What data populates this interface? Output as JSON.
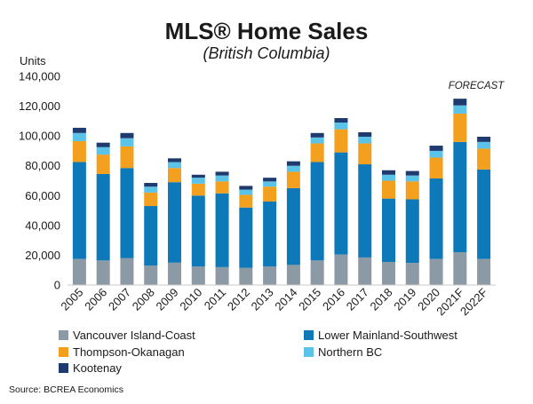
{
  "chart_data": {
    "type": "bar",
    "stacked": true,
    "title": "MLS® Home Sales",
    "subtitle": "(British Columbia)",
    "ylabel": "Units",
    "ylim": [
      0,
      140000
    ],
    "yticks": [
      0,
      20000,
      40000,
      60000,
      80000,
      100000,
      120000,
      140000
    ],
    "ytick_labels": [
      "0",
      "20,000",
      "40,000",
      "60,000",
      "80,000",
      "100,000",
      "120,000",
      "140,000"
    ],
    "grid": false,
    "legend_position": "bottom",
    "annotation": "FORECAST",
    "categories": [
      "2005",
      "2006",
      "2007",
      "2008",
      "2009",
      "2010",
      "2011",
      "2012",
      "2013",
      "2014",
      "2015",
      "2016",
      "2017",
      "2018",
      "2019",
      "2020",
      "2021F",
      "2022F"
    ],
    "series": [
      {
        "name": "Vancouver Island-Coast",
        "color": "#8c9aa6",
        "values": [
          17500,
          16500,
          18000,
          13000,
          15000,
          12500,
          12000,
          11500,
          12500,
          13500,
          16500,
          20500,
          18500,
          15500,
          14800,
          17500,
          22000,
          17500
        ]
      },
      {
        "name": "Lower Mainland-Southwest",
        "color": "#0d79b8",
        "values": [
          65000,
          58000,
          60500,
          40000,
          54000,
          47500,
          49500,
          40500,
          43500,
          51500,
          66000,
          68500,
          62500,
          42500,
          42700,
          54000,
          74000,
          60000
        ]
      },
      {
        "name": "Thompson-Okanagan",
        "color": "#f2a01e",
        "values": [
          14000,
          13000,
          14500,
          9000,
          9500,
          8000,
          8000,
          8500,
          10000,
          11000,
          12500,
          15500,
          14000,
          12000,
          12000,
          14000,
          19000,
          14000
        ]
      },
      {
        "name": "Northern BC",
        "color": "#5cc3e8",
        "values": [
          5500,
          5000,
          5500,
          4000,
          4000,
          4000,
          4000,
          3500,
          3500,
          4000,
          4000,
          4500,
          4500,
          4000,
          4000,
          4500,
          5500,
          4500
        ]
      },
      {
        "name": "Kootenay",
        "color": "#1e3a6e",
        "values": [
          3500,
          3000,
          3500,
          2500,
          2500,
          2000,
          2500,
          2500,
          2500,
          3000,
          3000,
          3000,
          3000,
          3000,
          3000,
          3500,
          4500,
          3500
        ]
      }
    ],
    "source": "Source: BCREA Economics"
  }
}
